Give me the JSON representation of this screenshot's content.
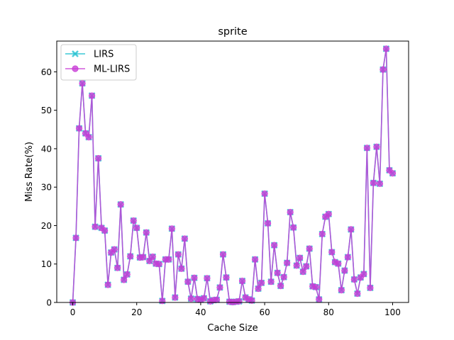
{
  "chart_data": {
    "type": "line",
    "title": "sprite",
    "xlabel": "Cache Size",
    "ylabel": "Miss Rate(%)",
    "xlim": [
      -5,
      105
    ],
    "ylim": [
      0,
      68
    ],
    "xticks": [
      0,
      20,
      40,
      60,
      80,
      100
    ],
    "yticks": [
      0,
      10,
      20,
      30,
      40,
      50,
      60
    ],
    "grid": false,
    "legend_position": "top-left",
    "x": [
      0,
      1,
      2,
      3,
      4,
      5,
      6,
      7,
      8,
      9,
      10,
      11,
      12,
      13,
      14,
      15,
      16,
      17,
      18,
      19,
      20,
      21,
      22,
      23,
      24,
      25,
      26,
      27,
      28,
      29,
      30,
      31,
      32,
      33,
      34,
      35,
      36,
      37,
      38,
      39,
      40,
      41,
      42,
      43,
      44,
      45,
      46,
      47,
      48,
      49,
      50,
      51,
      52,
      53,
      54,
      55,
      56,
      57,
      58,
      59,
      60,
      61,
      62,
      63,
      64,
      65,
      66,
      67,
      68,
      69,
      70,
      71,
      72,
      73,
      74,
      75,
      76,
      77,
      78,
      79,
      80,
      81,
      82,
      83,
      84,
      85,
      86,
      87,
      88,
      89,
      90,
      91,
      92,
      93,
      94,
      95,
      96,
      97,
      98,
      99,
      100
    ],
    "series": [
      {
        "name": "LIRS",
        "color": "#17becf",
        "marker": "x",
        "values": [
          0,
          16.8,
          45.3,
          57,
          44,
          43,
          53.8,
          19.7,
          37.5,
          19.4,
          18.7,
          4.6,
          13,
          13.8,
          9,
          25.5,
          5.9,
          7.3,
          12,
          21.3,
          19.4,
          11.7,
          11.8,
          18.2,
          10.8,
          11.9,
          10.1,
          10,
          0.4,
          11.2,
          11.2,
          19.2,
          1.3,
          12.5,
          8.8,
          16.6,
          5.4,
          1,
          6.4,
          0.9,
          0.7,
          1.1,
          6.3,
          0.3,
          0.6,
          0.7,
          3.9,
          12.5,
          6.5,
          0.2,
          0.1,
          0.2,
          0.3,
          5.6,
          1.3,
          0.8,
          0.5,
          11.2,
          3.6,
          5.1,
          28.3,
          20.6,
          5.4,
          14.9,
          7.7,
          4.3,
          6.6,
          10.3,
          23.5,
          19.5,
          9.6,
          11.6,
          8,
          9.4,
          14,
          4.2,
          4,
          0.8,
          17.8,
          22.3,
          23,
          13.1,
          10.5,
          10.1,
          3.2,
          8.3,
          11.8,
          19,
          6,
          2.3,
          6.5,
          7.4,
          40.2,
          3.8,
          31.1,
          40.5,
          30.9,
          60.6,
          66,
          34.4,
          33.6
        ]
      },
      {
        "name": "ML-LIRS",
        "color": "#c83bd6",
        "marker": "o",
        "values": [
          0,
          16.8,
          45.3,
          57,
          44,
          43,
          53.8,
          19.7,
          37.5,
          19.4,
          18.7,
          4.6,
          13,
          13.8,
          9,
          25.5,
          5.9,
          7.3,
          12,
          21.3,
          19.4,
          11.7,
          11.8,
          18.2,
          10.8,
          11.9,
          10.1,
          10,
          0.4,
          11.2,
          11.2,
          19.2,
          1.3,
          12.5,
          8.8,
          16.6,
          5.4,
          1,
          6.4,
          0.9,
          0.7,
          1.1,
          6.3,
          0.3,
          0.6,
          0.7,
          3.9,
          12.5,
          6.5,
          0.2,
          0.1,
          0.2,
          0.3,
          5.6,
          1.3,
          0.8,
          0.5,
          11.2,
          3.6,
          5.1,
          28.3,
          20.6,
          5.4,
          14.9,
          7.7,
          4.3,
          6.6,
          10.3,
          23.5,
          19.5,
          9.6,
          11.6,
          8,
          9.4,
          14,
          4.2,
          4,
          0.8,
          17.8,
          22.3,
          23,
          13.1,
          10.5,
          10.1,
          3.2,
          8.3,
          11.8,
          19,
          6,
          2.3,
          6.5,
          7.4,
          40.2,
          3.8,
          31.1,
          40.5,
          30.9,
          60.6,
          66,
          34.4,
          33.6
        ]
      }
    ]
  }
}
